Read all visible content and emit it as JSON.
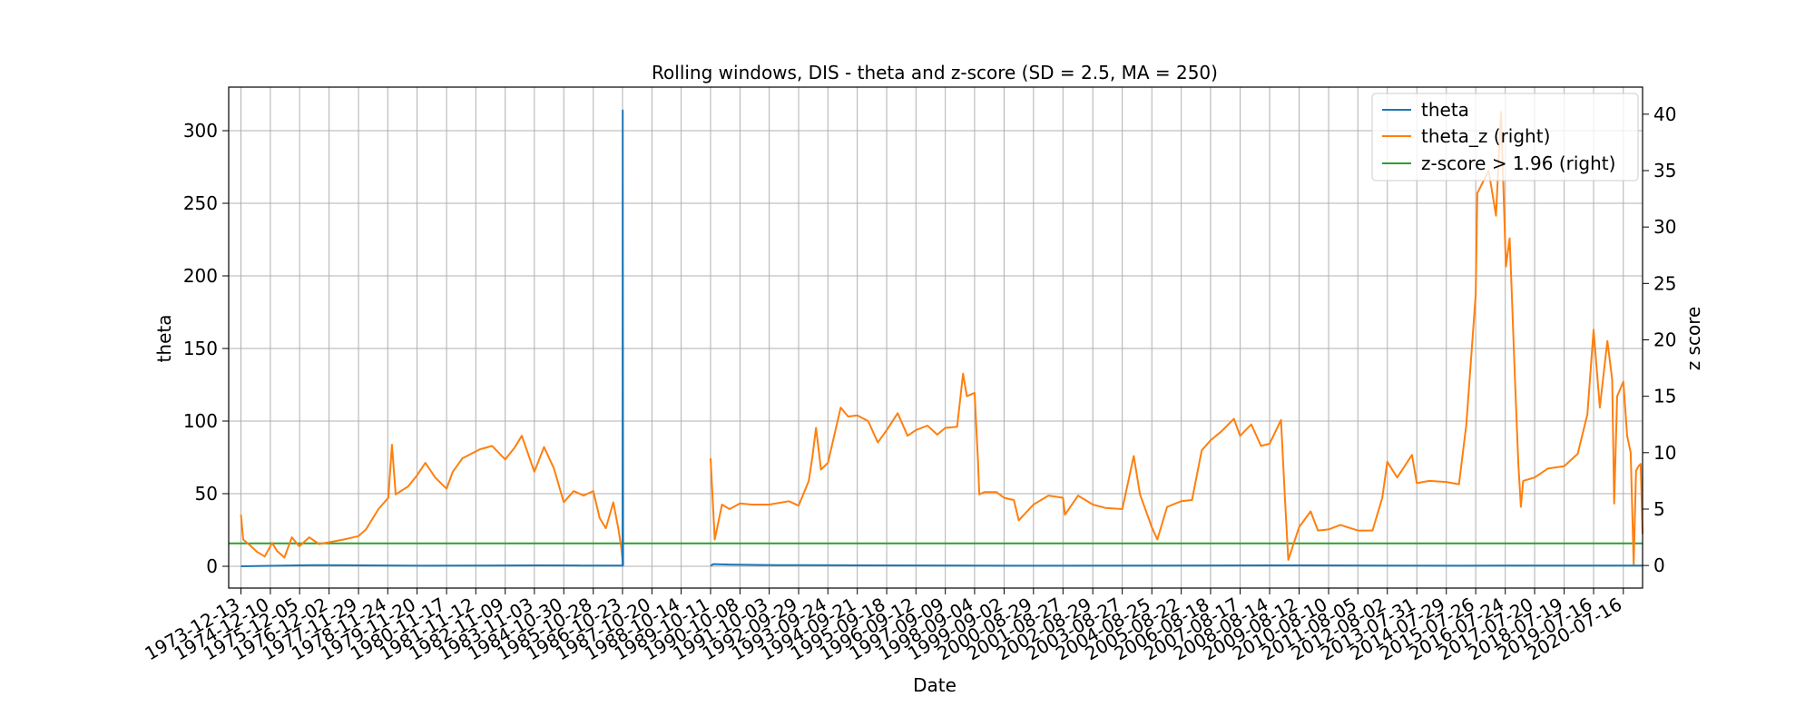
{
  "chart_data": {
    "type": "line",
    "title": "Rolling windows, DIS - theta and z-score (SD = 2.5, MA = 250)",
    "xlabel": "Date",
    "ylabel": "theta",
    "ylabel_right": "z score",
    "ylim": [
      -15,
      330
    ],
    "ylim_right": [
      -2.0,
      42.4
    ],
    "yticks": [
      0,
      50,
      100,
      150,
      200,
      250,
      300
    ],
    "yticks_right": [
      0,
      5,
      10,
      15,
      20,
      25,
      30,
      35,
      40
    ],
    "xlim": [
      "1973-07-15",
      "2021-03-10"
    ],
    "grid": true,
    "legend_position": "top-right",
    "x_tick_labels": [
      "1973-12-13",
      "1974-12-10",
      "1975-12-05",
      "1976-12-02",
      "1977-11-29",
      "1978-11-24",
      "1979-11-20",
      "1980-11-17",
      "1981-11-12",
      "1982-11-09",
      "1983-11-03",
      "1984-10-30",
      "1985-10-28",
      "1986-10-23",
      "1987-10-20",
      "1988-10-14",
      "1989-10-11",
      "1990-10-08",
      "1991-10-03",
      "1992-09-29",
      "1993-09-24",
      "1994-09-21",
      "1995-09-18",
      "1996-09-12",
      "1997-09-09",
      "1998-09-04",
      "1999-09-02",
      "2000-08-29",
      "2001-08-27",
      "2002-08-29",
      "2003-08-27",
      "2004-08-25",
      "2005-08-22",
      "2006-08-18",
      "2007-08-17",
      "2008-08-14",
      "2009-08-12",
      "2010-08-10",
      "2011-08-05",
      "2012-08-02",
      "2013-07-31",
      "2014-07-29",
      "2015-07-26",
      "2016-07-24",
      "2017-07-20",
      "2018-07-19",
      "2019-07-16",
      "2020-07-16"
    ],
    "series": [
      {
        "name": "theta",
        "axis": "left",
        "color": "#1f77b4",
        "segments": [
          [
            [
              "1973-12-13",
              0
            ],
            [
              "1975-06-01",
              0.5
            ],
            [
              "1976-06-01",
              0.8
            ],
            [
              "1978-01-01",
              0.6
            ],
            [
              "1980-01-01",
              0.4
            ],
            [
              "1982-01-01",
              0.5
            ],
            [
              "1984-01-01",
              0.6
            ],
            [
              "1985-06-01",
              0.5
            ],
            [
              "1986-10-01",
              0.5
            ],
            [
              "1986-10-23",
              0.5
            ],
            [
              "1986-10-26",
              314
            ],
            [
              "1986-10-30",
              0.5
            ],
            [
              "1986-11-05",
              0.5
            ]
          ],
          [
            [
              "1989-10-11",
              0.3
            ],
            [
              "1989-11-15",
              1.5
            ],
            [
              "1990-06-01",
              1.2
            ],
            [
              "1992-01-01",
              0.8
            ],
            [
              "1995-01-01",
              0.6
            ],
            [
              "2000-01-01",
              0.4
            ],
            [
              "2005-01-01",
              0.5
            ],
            [
              "2010-01-01",
              0.6
            ],
            [
              "2015-01-01",
              0.4
            ],
            [
              "2018-01-01",
              0.5
            ],
            [
              "2021-03-10",
              0.5
            ]
          ]
        ]
      },
      {
        "name": "theta_z (right)",
        "axis": "right",
        "color": "#ff7f0e",
        "segments": [
          [
            [
              "1973-12-13",
              4.5
            ],
            [
              "1974-01-10",
              2.3
            ],
            [
              "1974-04-01",
              1.8
            ],
            [
              "1974-07-01",
              1.2
            ],
            [
              "1974-10-01",
              0.8
            ],
            [
              "1975-01-01",
              2.0
            ],
            [
              "1975-03-01",
              1.3
            ],
            [
              "1975-06-01",
              0.7
            ],
            [
              "1975-09-01",
              2.5
            ],
            [
              "1975-12-01",
              1.7
            ],
            [
              "1976-04-01",
              2.5
            ],
            [
              "1976-08-01",
              1.9
            ],
            [
              "1977-01-01",
              2.1
            ],
            [
              "1977-06-01",
              2.3
            ],
            [
              "1977-11-29",
              2.6
            ],
            [
              "1978-03-01",
              3.2
            ],
            [
              "1978-08-01",
              5.0
            ],
            [
              "1978-12-01",
              6.0
            ],
            [
              "1979-01-15",
              10.7
            ],
            [
              "1979-03-01",
              6.3
            ],
            [
              "1979-08-01",
              7.0
            ],
            [
              "1979-11-20",
              8.0
            ],
            [
              "1980-03-01",
              9.1
            ],
            [
              "1980-07-01",
              7.8
            ],
            [
              "1980-11-17",
              6.8
            ],
            [
              "1981-02-01",
              8.3
            ],
            [
              "1981-06-01",
              9.5
            ],
            [
              "1982-01-01",
              10.3
            ],
            [
              "1982-06-01",
              10.6
            ],
            [
              "1982-11-09",
              9.4
            ],
            [
              "1983-03-01",
              10.4
            ],
            [
              "1983-06-01",
              11.5
            ],
            [
              "1983-11-03",
              8.3
            ],
            [
              "1984-03-01",
              10.5
            ],
            [
              "1984-07-01",
              8.6
            ],
            [
              "1984-10-30",
              5.6
            ],
            [
              "1985-03-01",
              6.6
            ],
            [
              "1985-07-01",
              6.2
            ],
            [
              "1985-10-28",
              6.6
            ],
            [
              "1986-01-15",
              4.2
            ],
            [
              "1986-04-01",
              3.3
            ],
            [
              "1986-07-01",
              5.6
            ],
            [
              "1986-09-01",
              3.3
            ],
            [
              "1986-10-10",
              1.5
            ],
            [
              "1986-10-23",
              0.4
            ]
          ],
          [
            [
              "1989-10-11",
              9.5
            ],
            [
              "1989-12-01",
              2.3
            ],
            [
              "1990-03-01",
              5.4
            ],
            [
              "1990-06-01",
              5.0
            ],
            [
              "1990-10-08",
              5.5
            ],
            [
              "1991-03-01",
              5.4
            ],
            [
              "1991-10-03",
              5.4
            ],
            [
              "1992-06-01",
              5.7
            ],
            [
              "1992-09-29",
              5.3
            ],
            [
              "1993-02-01",
              7.5
            ],
            [
              "1993-03-15",
              9.5
            ],
            [
              "1993-05-01",
              12.2
            ],
            [
              "1993-07-01",
              8.5
            ],
            [
              "1993-09-24",
              9.1
            ],
            [
              "1994-03-01",
              14.0
            ],
            [
              "1994-06-01",
              13.2
            ],
            [
              "1994-09-21",
              13.3
            ],
            [
              "1995-02-01",
              12.8
            ],
            [
              "1995-06-01",
              10.9
            ],
            [
              "1995-09-18",
              12.0
            ],
            [
              "1996-02-01",
              13.5
            ],
            [
              "1996-06-01",
              11.5
            ],
            [
              "1996-09-12",
              12.0
            ],
            [
              "1997-02-01",
              12.4
            ],
            [
              "1997-06-01",
              11.6
            ],
            [
              "1997-09-09",
              12.2
            ],
            [
              "1998-02-01",
              12.3
            ],
            [
              "1998-04-15",
              17.0
            ],
            [
              "1998-06-01",
              15.0
            ],
            [
              "1998-09-04",
              15.3
            ],
            [
              "1998-10-15",
              9.4
            ],
            [
              "1998-11-01",
              6.3
            ],
            [
              "1999-01-01",
              6.5
            ],
            [
              "1999-06-01",
              6.5
            ],
            [
              "1999-09-02",
              6.0
            ],
            [
              "2000-01-01",
              5.8
            ],
            [
              "2000-03-01",
              4.0
            ],
            [
              "2000-08-29",
              5.4
            ],
            [
              "2001-03-01",
              6.2
            ],
            [
              "2001-08-27",
              6.0
            ],
            [
              "2001-09-20",
              4.5
            ],
            [
              "2002-03-01",
              6.2
            ],
            [
              "2002-08-29",
              5.4
            ],
            [
              "2003-02-01",
              5.1
            ],
            [
              "2003-08-27",
              5.0
            ],
            [
              "2004-01-15",
              9.7
            ],
            [
              "2004-04-01",
              6.3
            ],
            [
              "2004-08-25",
              3.4
            ],
            [
              "2004-11-01",
              2.3
            ],
            [
              "2005-03-01",
              5.2
            ],
            [
              "2005-08-22",
              5.7
            ],
            [
              "2006-01-01",
              5.8
            ],
            [
              "2006-05-01",
              10.2
            ],
            [
              "2006-08-18",
              11.1
            ],
            [
              "2007-01-01",
              11.9
            ],
            [
              "2007-06-01",
              13.0
            ],
            [
              "2007-08-17",
              11.5
            ],
            [
              "2008-01-01",
              12.5
            ],
            [
              "2008-05-01",
              10.6
            ],
            [
              "2008-08-14",
              10.8
            ],
            [
              "2009-01-01",
              12.9
            ],
            [
              "2009-02-15",
              6.4
            ],
            [
              "2009-04-01",
              0.5
            ],
            [
              "2009-08-12",
              3.4
            ],
            [
              "2010-01-01",
              4.8
            ],
            [
              "2010-04-01",
              3.1
            ],
            [
              "2010-08-10",
              3.2
            ],
            [
              "2011-01-01",
              3.6
            ],
            [
              "2011-08-05",
              3.1
            ],
            [
              "2012-02-01",
              3.1
            ],
            [
              "2012-06-01",
              6.0
            ],
            [
              "2012-08-02",
              9.2
            ],
            [
              "2012-12-01",
              7.8
            ],
            [
              "2013-06-01",
              9.8
            ],
            [
              "2013-07-31",
              7.3
            ],
            [
              "2014-01-01",
              7.5
            ],
            [
              "2014-07-29",
              7.4
            ],
            [
              "2015-01-01",
              7.2
            ],
            [
              "2015-04-01",
              12.5
            ],
            [
              "2015-07-26",
              24.0
            ],
            [
              "2015-08-15",
              33.0
            ],
            [
              "2016-01-01",
              35.0
            ],
            [
              "2016-04-01",
              31.0
            ],
            [
              "2016-06-01",
              40.2
            ],
            [
              "2016-08-01",
              26.5
            ],
            [
              "2016-09-15",
              29.0
            ],
            [
              "2016-10-10",
              24.5
            ],
            [
              "2016-11-15",
              17.5
            ],
            [
              "2017-01-01",
              9.0
            ],
            [
              "2017-02-01",
              5.2
            ],
            [
              "2017-03-01",
              7.5
            ],
            [
              "2017-07-20",
              7.8
            ],
            [
              "2018-01-01",
              8.6
            ],
            [
              "2018-07-19",
              8.8
            ],
            [
              "2019-01-01",
              9.9
            ],
            [
              "2019-05-01",
              13.4
            ],
            [
              "2019-07-16",
              20.9
            ],
            [
              "2019-10-01",
              14.0
            ],
            [
              "2020-01-01",
              19.9
            ],
            [
              "2020-03-01",
              16.5
            ],
            [
              "2020-03-25",
              5.5
            ],
            [
              "2020-05-01",
              15.0
            ],
            [
              "2020-07-16",
              16.3
            ],
            [
              "2020-09-01",
              11.5
            ],
            [
              "2020-10-15",
              10.0
            ],
            [
              "2020-11-20",
              0.1
            ],
            [
              "2020-12-20",
              8.4
            ],
            [
              "2021-01-20",
              8.8
            ],
            [
              "2021-02-15",
              9.0
            ],
            [
              "2021-03-10",
              2.8
            ]
          ]
        ]
      },
      {
        "name": "z-score > 1.96 (right)",
        "axis": "right",
        "color": "#2ca02c",
        "segments": [
          [
            [
              "1973-07-15",
              1.96
            ],
            [
              "2021-03-10",
              1.96
            ]
          ]
        ]
      }
    ]
  }
}
